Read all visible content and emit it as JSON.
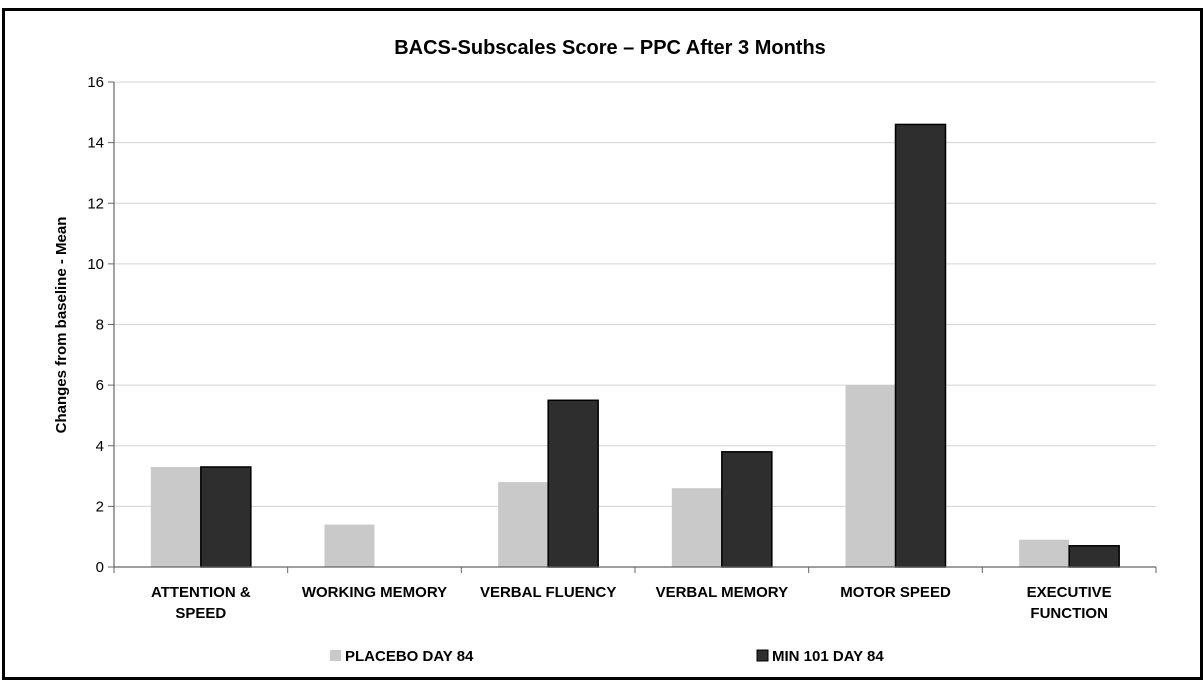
{
  "chart_data": {
    "type": "bar",
    "title": "BACS-Subscales Score – PPC After 3 Months",
    "xlabel": "",
    "ylabel": "Changes from baseline - Mean",
    "ylim": [
      0,
      16
    ],
    "yticks": [
      "0",
      "2",
      "4",
      "6",
      "8",
      "10",
      "12",
      "14",
      "16"
    ],
    "categories": [
      [
        "ATTENTION &",
        "SPEED"
      ],
      [
        "WORKING MEMORY"
      ],
      [
        "VERBAL FLUENCY"
      ],
      [
        "VERBAL MEMORY"
      ],
      [
        "MOTOR SPEED"
      ],
      [
        "EXECUTIVE",
        "FUNCTION"
      ]
    ],
    "series": [
      {
        "name": "PLACEBO DAY 84",
        "color": "#c9c9c9",
        "values": [
          3.3,
          1.4,
          2.8,
          2.6,
          6.0,
          0.9
        ]
      },
      {
        "name": "MIN 101 DAY 84",
        "color": "#2e2e2e",
        "values": [
          3.3,
          0.0,
          5.5,
          3.8,
          14.6,
          0.7
        ]
      }
    ],
    "grid": true,
    "legend_position": "bottom"
  }
}
